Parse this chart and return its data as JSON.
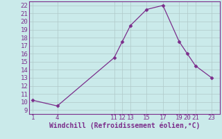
{
  "x": [
    1,
    4,
    11,
    12,
    13,
    15,
    17,
    19,
    20,
    21,
    23
  ],
  "y": [
    10.2,
    9.5,
    15.5,
    17.5,
    19.5,
    21.5,
    22.0,
    17.5,
    16.0,
    14.5,
    13.0
  ],
  "line_color": "#7b2d8b",
  "marker_color": "#7b2d8b",
  "bg_color": "#caeaea",
  "grid_color": "#b0c8c8",
  "xlabel": "Windchill (Refroidissement éolien,°C)",
  "xlabel_color": "#7b2d8b",
  "ylim": [
    8.5,
    22.5
  ],
  "xlim": [
    0.5,
    24
  ],
  "xticks": [
    1,
    4,
    11,
    12,
    13,
    15,
    17,
    19,
    20,
    21,
    23
  ],
  "yticks": [
    9,
    10,
    11,
    12,
    13,
    14,
    15,
    16,
    17,
    18,
    19,
    20,
    21,
    22
  ],
  "tick_color": "#7b2d8b",
  "font_size": 6.5,
  "xlabel_fontsize": 7.0,
  "linewidth": 0.9,
  "markersize": 2.5
}
